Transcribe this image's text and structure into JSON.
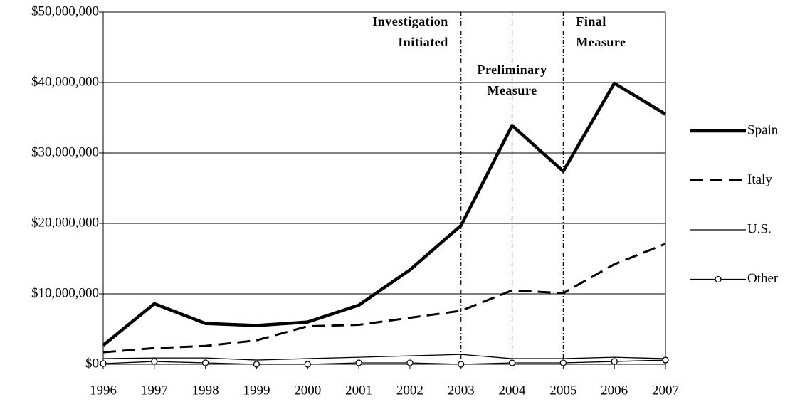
{
  "chart_data": {
    "type": "line",
    "categories": [
      "1996",
      "1997",
      "1998",
      "1999",
      "2000",
      "2001",
      "2002",
      "2003",
      "2004",
      "2005",
      "2006",
      "2007"
    ],
    "series": [
      {
        "name": "Spain",
        "color": "#000000",
        "style": "thick",
        "values": [
          2700000,
          8600000,
          5800000,
          5500000,
          6000000,
          8400000,
          13400000,
          19700000,
          33900000,
          27400000,
          39900000,
          35500000
        ]
      },
      {
        "name": "Italy",
        "color": "#000000",
        "style": "dashed",
        "values": [
          1700000,
          2300000,
          2600000,
          3400000,
          5400000,
          5600000,
          6600000,
          7600000,
          10500000,
          10100000,
          14200000,
          17100000
        ]
      },
      {
        "name": "U.S.",
        "color": "#000000",
        "style": "thin",
        "values": [
          800000,
          900000,
          900000,
          600000,
          800000,
          1000000,
          1200000,
          1400000,
          800000,
          800000,
          1000000,
          800000
        ]
      },
      {
        "name": "Other",
        "color": "#000000",
        "style": "circles",
        "values": [
          100000,
          400000,
          200000,
          0,
          0,
          200000,
          200000,
          0,
          200000,
          200000,
          400000,
          600000
        ]
      }
    ],
    "ylim": [
      0,
      50000000
    ],
    "yticks": [
      {
        "value": 0,
        "label": "$0"
      },
      {
        "value": 10000000,
        "label": "$10,000,000"
      },
      {
        "value": 20000000,
        "label": "$20,000,000"
      },
      {
        "value": 30000000,
        "label": "$30,000,000"
      },
      {
        "value": 40000000,
        "label": "$40,000,000"
      },
      {
        "value": 50000000,
        "label": "$50,000,000"
      }
    ],
    "grid": true,
    "legend": "right",
    "events": [
      {
        "at": "2003",
        "label": [
          "Investigation",
          "Initiated"
        ]
      },
      {
        "at": "2004",
        "label": [
          "Preliminary",
          "Measure"
        ]
      },
      {
        "at": "2005",
        "label": [
          "Final",
          "Measure"
        ]
      }
    ]
  }
}
